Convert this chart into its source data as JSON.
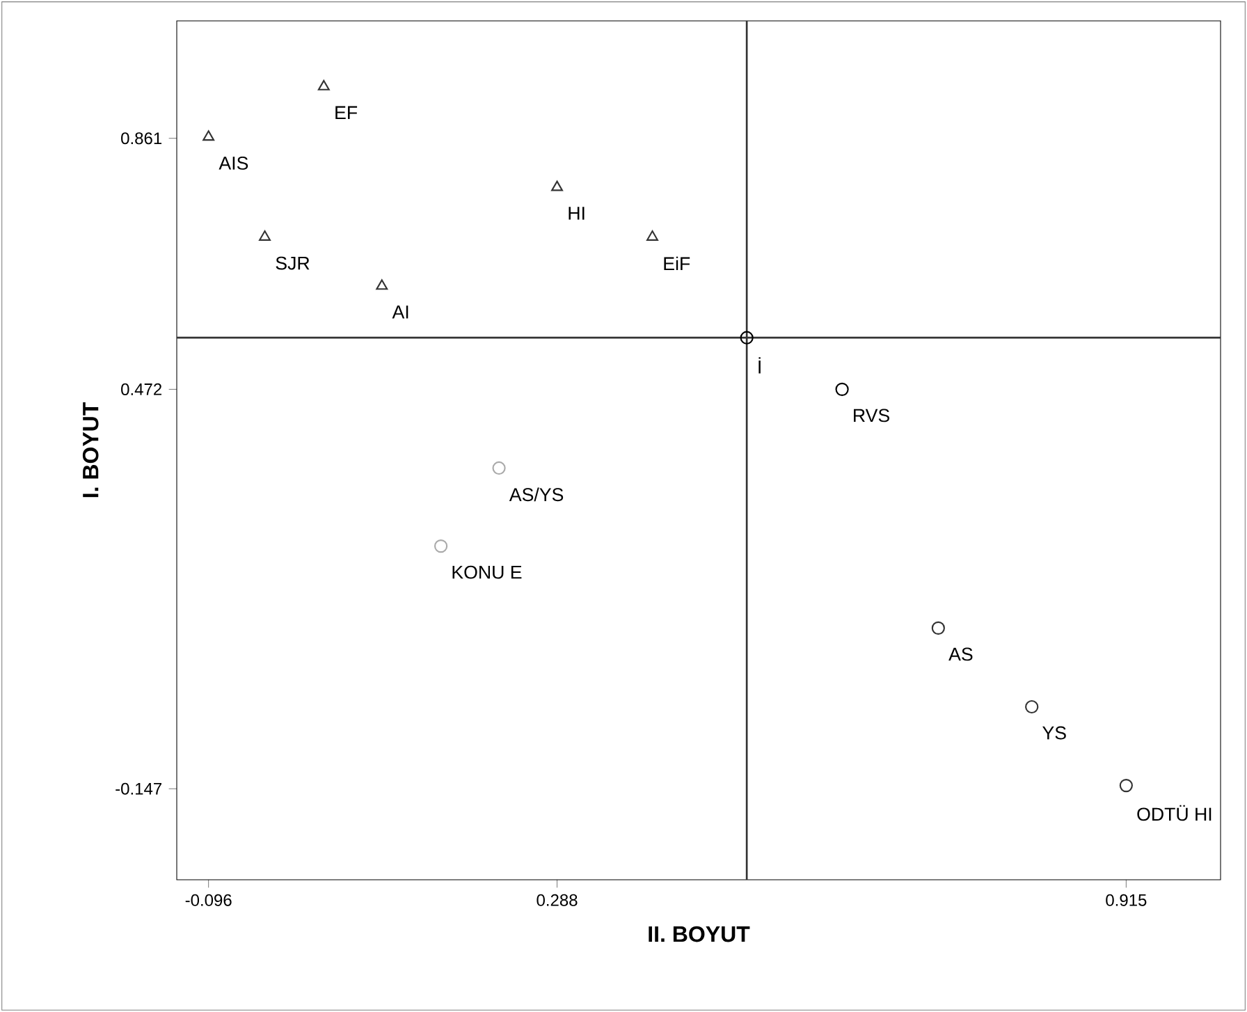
{
  "chart_data": {
    "type": "scatter",
    "xlabel": "II. BOYUT",
    "ylabel": "I. BOYUT",
    "xlim": [
      -0.131,
      1.019
    ],
    "ylim": [
      -0.288,
      1.043
    ],
    "xticks": [
      -0.096,
      0.288,
      0.915
    ],
    "yticks": [
      -0.147,
      0.472,
      0.861
    ],
    "grid": false,
    "series": [
      {
        "color": "#333333",
        "marker": "triangle",
        "x": [
          -0.096,
          0.031,
          -0.034,
          0.095,
          0.288,
          0.393
        ],
        "values": [
          0.863,
          0.941,
          0.708,
          0.632,
          0.785,
          0.708
        ]
      },
      {
        "color": "#000000",
        "marker": "circle",
        "x": [
          0.497,
          0.602
        ],
        "values": [
          0.552,
          0.472
        ]
      },
      {
        "color": "#aaaaaa",
        "marker": "circle",
        "x": [
          0.224,
          0.16
        ],
        "values": [
          0.35,
          0.229
        ]
      },
      {
        "color": "#333333",
        "marker": "circle",
        "x": [
          0.708,
          0.811,
          0.915
        ],
        "values": [
          0.102,
          -0.02,
          -0.142
        ]
      }
    ],
    "ref_lines": [
      {
        "axis": "x",
        "value": 0.497,
        "color": "#333333"
      },
      {
        "axis": "y",
        "value": 0.552,
        "color": "#333333"
      }
    ],
    "annotations": [
      {
        "text": "AIS",
        "x": -0.096,
        "y": 0.863
      },
      {
        "text": "EF",
        "x": 0.031,
        "y": 0.941
      },
      {
        "text": "SJR",
        "x": -0.034,
        "y": 0.708
      },
      {
        "text": "AI",
        "x": 0.095,
        "y": 0.632
      },
      {
        "text": "HI",
        "x": 0.288,
        "y": 0.785
      },
      {
        "text": "EiF",
        "x": 0.393,
        "y": 0.708
      },
      {
        "text": "İ",
        "x": 0.497,
        "y": 0.552
      },
      {
        "text": "RVS",
        "x": 0.602,
        "y": 0.472
      },
      {
        "text": "AS/YS",
        "x": 0.224,
        "y": 0.35
      },
      {
        "text": "KONU E",
        "x": 0.16,
        "y": 0.229
      },
      {
        "text": "AS",
        "x": 0.708,
        "y": 0.102
      },
      {
        "text": "YS",
        "x": 0.811,
        "y": -0.02
      },
      {
        "text": "ODTÜ HI",
        "x": 0.915,
        "y": -0.142
      }
    ]
  }
}
